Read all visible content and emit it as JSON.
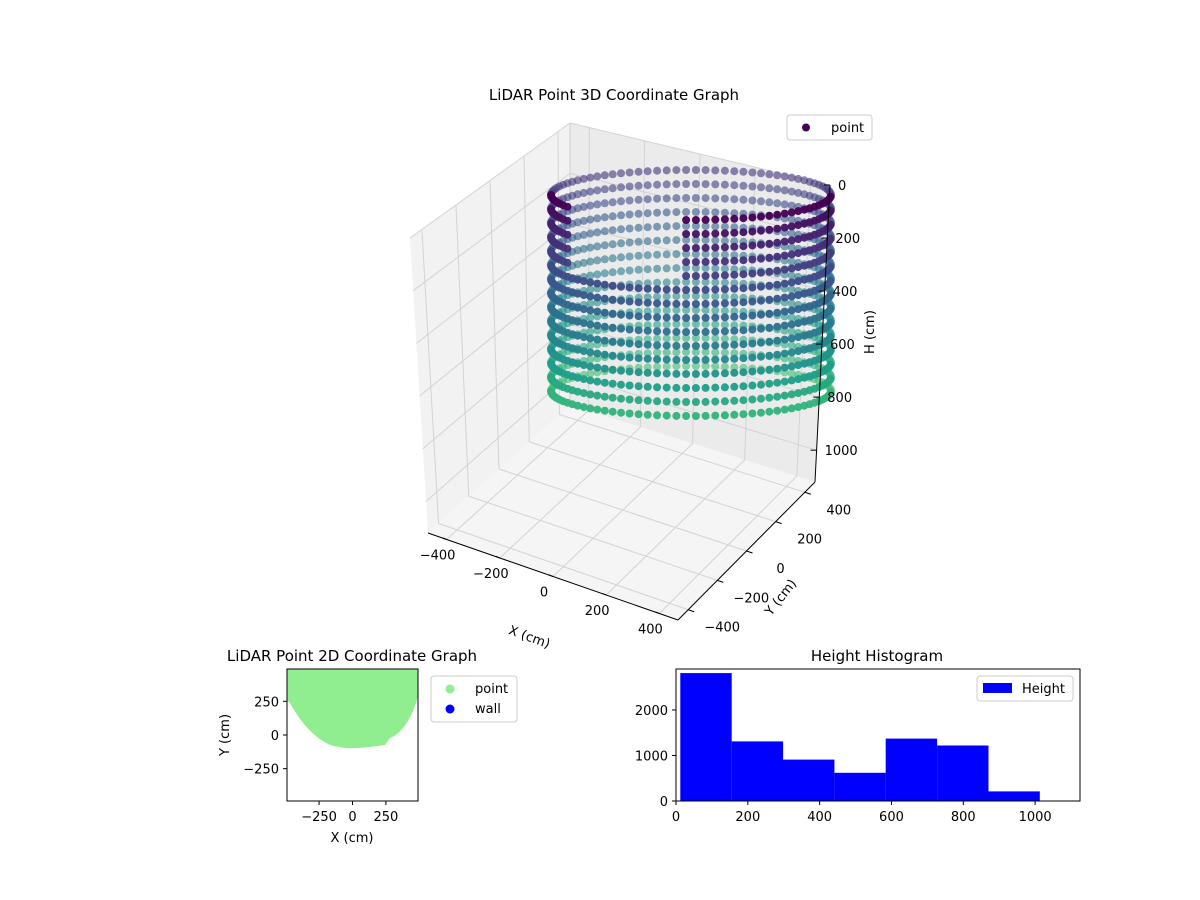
{
  "chart_data": [
    {
      "type": "scatter",
      "projection": "3d",
      "title": "LiDAR Point 3D Coordinate Graph",
      "xlabel": "X (cm)",
      "ylabel": "Y (cm)",
      "zlabel": "H (cm)",
      "xticks": [
        "−400",
        "−200",
        "0",
        "200",
        "400"
      ],
      "yticks": [
        "400",
        "200",
        "0",
        "−200",
        "−400"
      ],
      "zticks": [
        "0",
        "200",
        "400",
        "600",
        "800",
        "1000"
      ],
      "xlim": [
        -470,
        470
      ],
      "ylim": [
        -470,
        470
      ],
      "zlim": [
        1120,
        0
      ],
      "legend": {
        "placement": "upper-right",
        "entries": [
          {
            "label": "point",
            "color": "#440154"
          }
        ]
      },
      "colormap": "viridis",
      "grid": true,
      "shape": "cylindrical wall of points, radius approx 470 cm, height 0 to 850 cm, cut open on the front-left"
    },
    {
      "type": "scatter",
      "title": "LiDAR Point 2D Coordinate Graph",
      "xlabel": "X (cm)",
      "ylabel": "Y (cm)",
      "xticks": [
        "−250",
        "0",
        "250"
      ],
      "yticks": [
        "250",
        "0",
        "−250"
      ],
      "xlim": [
        -490,
        490
      ],
      "ylim": [
        -490,
        490
      ],
      "legend": {
        "placement": "outside-right",
        "entries": [
          {
            "label": "point",
            "color": "#90ee90"
          },
          {
            "label": "wall",
            "color": "#0000ff"
          }
        ]
      }
    },
    {
      "type": "bar",
      "title": "Height Histogram",
      "xticks": [
        "0",
        "200",
        "400",
        "600",
        "800",
        "1000"
      ],
      "yticks": [
        "0",
        "1000",
        "2000"
      ],
      "xlim": [
        0,
        1125
      ],
      "ylim": [
        0,
        2900
      ],
      "bins": [
        {
          "start": 12,
          "end": 155,
          "count": 2810
        },
        {
          "start": 155,
          "end": 298,
          "count": 1310
        },
        {
          "start": 298,
          "end": 441,
          "count": 910
        },
        {
          "start": 441,
          "end": 584,
          "count": 620
        },
        {
          "start": 584,
          "end": 727,
          "count": 1370
        },
        {
          "start": 727,
          "end": 870,
          "count": 1220
        },
        {
          "start": 870,
          "end": 1013,
          "count": 210
        }
      ],
      "color": "#0000ff",
      "legend": {
        "placement": "upper-right",
        "entries": [
          {
            "label": "Height",
            "color": "#0000ff"
          }
        ]
      }
    }
  ]
}
